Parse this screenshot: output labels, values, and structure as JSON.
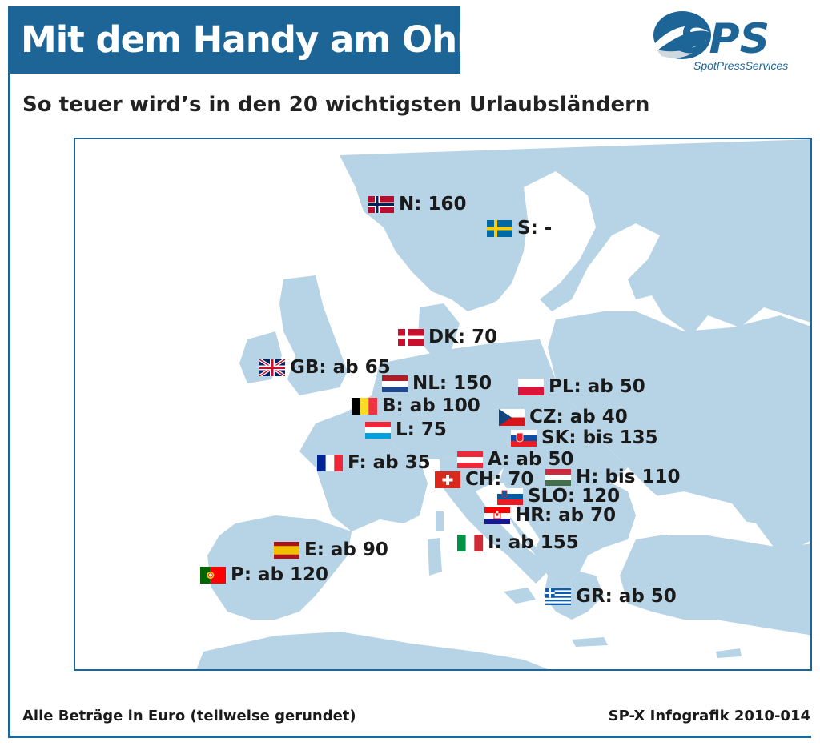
{
  "header": {
    "title": "Mit dem Handy am Ohr",
    "subtitle": "So teuer wird’s in den 20 wichtigsten Urlaubsländern"
  },
  "logo": {
    "text": "SPS",
    "tagline": "SpotPressServices"
  },
  "map": {
    "land_color": "#b7d3e6",
    "sea_color": "#ffffff",
    "countries": [
      {
        "code": "N",
        "label": "N: 160",
        "flag": "norway-flag"
      },
      {
        "code": "S",
        "label": "S: -",
        "flag": "sweden-flag"
      },
      {
        "code": "DK",
        "label": "DK: 70",
        "flag": "denmark-flag"
      },
      {
        "code": "GB",
        "label": "GB: ab 65",
        "flag": "uk-flag"
      },
      {
        "code": "NL",
        "label": "NL: 150",
        "flag": "netherlands-flag"
      },
      {
        "code": "PL",
        "label": "PL: ab 50",
        "flag": "poland-flag"
      },
      {
        "code": "B",
        "label": "B: ab 100",
        "flag": "belgium-flag"
      },
      {
        "code": "CZ",
        "label": "CZ: ab 40",
        "flag": "czech-flag"
      },
      {
        "code": "L",
        "label": "L: 75",
        "flag": "luxembourg-flag"
      },
      {
        "code": "SK",
        "label": "SK: bis 135",
        "flag": "slovakia-flag"
      },
      {
        "code": "F",
        "label": "F: ab 35",
        "flag": "france-flag"
      },
      {
        "code": "A",
        "label": "A: ab 50",
        "flag": "austria-flag"
      },
      {
        "code": "H",
        "label": "H: bis 110",
        "flag": "hungary-flag"
      },
      {
        "code": "CH",
        "label": "CH: 70",
        "flag": "switzerland-flag"
      },
      {
        "code": "SLO",
        "label": "SLO: 120",
        "flag": "slovenia-flag"
      },
      {
        "code": "HR",
        "label": "HR: ab 70",
        "flag": "croatia-flag"
      },
      {
        "code": "E",
        "label": "E: ab 90",
        "flag": "spain-flag"
      },
      {
        "code": "I",
        "label": "I: ab 155",
        "flag": "italy-flag"
      },
      {
        "code": "P",
        "label": "P: ab 120",
        "flag": "portugal-flag"
      },
      {
        "code": "GR",
        "label": "GR: ab 50",
        "flag": "greece-flag"
      }
    ]
  },
  "footer": {
    "note": "Alle Beträge in Euro (teilweise gerundet)",
    "source": "SP-X Infografik 2010-014"
  }
}
